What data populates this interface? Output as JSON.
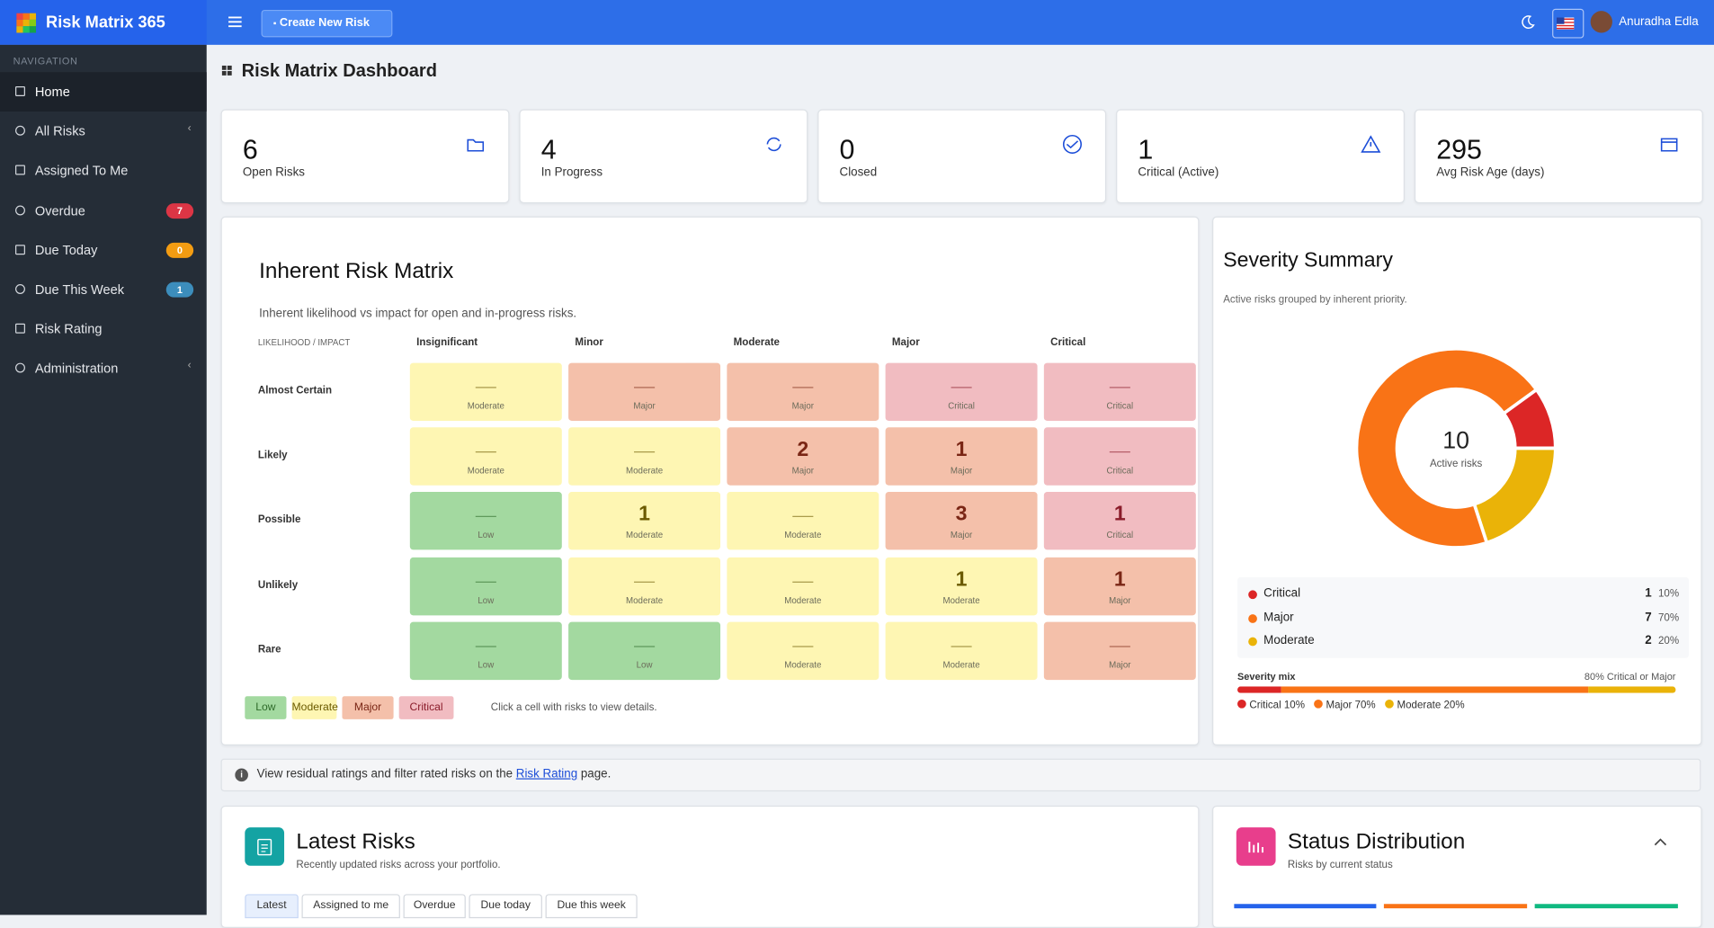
{
  "brand": "Risk Matrix 365",
  "topbar": {
    "create_button": "Create New Risk",
    "user": "Anuradha Edla"
  },
  "sidebar": {
    "heading": "NAVIGATION",
    "items": [
      {
        "label": "Home"
      },
      {
        "label": "All Risks"
      },
      {
        "label": "Assigned To Me"
      },
      {
        "label": "Overdue",
        "badge": 7
      },
      {
        "label": "Due Today",
        "badge": 0
      },
      {
        "label": "Due This Week",
        "badge": 1
      },
      {
        "label": "Risk Rating"
      },
      {
        "label": "Administration"
      }
    ]
  },
  "page_title": "Risk Matrix Dashboard",
  "stats": [
    {
      "value": 6,
      "label": "Open Risks"
    },
    {
      "value": 4,
      "label": "In Progress"
    },
    {
      "value": 0,
      "label": "Closed"
    },
    {
      "value": 1,
      "label": "Critical (Active)"
    },
    {
      "value": 295,
      "label": "Avg Risk Age (days)"
    }
  ],
  "matrix": {
    "title": "Inherent Risk Matrix",
    "subtitle": "Inherent likelihood vs impact for open and in-progress risks.",
    "corner": "LIKELIHOOD / IMPACT",
    "columns": [
      "Insignificant",
      "Minor",
      "Moderate",
      "Major",
      "Critical"
    ],
    "rows": [
      {
        "label": "Almost Certain",
        "cells": [
          {
            "rating": "Moderate"
          },
          {
            "rating": "Major"
          },
          {
            "rating": "Major"
          },
          {
            "rating": "Critical"
          },
          {
            "rating": "Critical"
          }
        ]
      },
      {
        "label": "Likely",
        "cells": [
          {
            "rating": "Moderate"
          },
          {
            "rating": "Moderate"
          },
          {
            "count": 2,
            "rating": "Major"
          },
          {
            "count": 1,
            "rating": "Major"
          },
          {
            "rating": "Critical"
          }
        ]
      },
      {
        "label": "Possible",
        "cells": [
          {
            "rating": "Low"
          },
          {
            "count": 1,
            "rating": "Moderate"
          },
          {
            "rating": "Moderate"
          },
          {
            "count": 3,
            "rating": "Major"
          },
          {
            "count": 1,
            "rating": "Critical"
          }
        ]
      },
      {
        "label": "Unlikely",
        "cells": [
          {
            "rating": "Low"
          },
          {
            "rating": "Moderate"
          },
          {
            "rating": "Moderate"
          },
          {
            "count": 1,
            "rating": "Moderate"
          },
          {
            "count": 1,
            "rating": "Major"
          }
        ]
      },
      {
        "label": "Rare",
        "cells": [
          {
            "rating": "Low"
          },
          {
            "rating": "Low"
          },
          {
            "rating": "Moderate"
          },
          {
            "rating": "Moderate"
          },
          {
            "rating": "Major"
          }
        ]
      }
    ],
    "legend": [
      {
        "label": "Low",
        "color": "#a3d9a0"
      },
      {
        "label": "Moderate",
        "color": "#fef6b3"
      },
      {
        "label": "Major",
        "color": "#f4c0aa"
      },
      {
        "label": "Critical",
        "color": "#f1bcc1"
      }
    ],
    "hint": "Click a cell with risks to view details."
  },
  "severity": {
    "title": "Severity Summary",
    "subtitle": "Active risks grouped by inherent priority.",
    "total": 10,
    "total_label": "Active risks",
    "categories": [
      "Critical",
      "Major",
      "Moderate"
    ],
    "counts": [
      1,
      7,
      2
    ],
    "percents": [
      10,
      70,
      20
    ],
    "percent_labels": [
      "10%",
      "70%",
      "20%"
    ],
    "colors": [
      "#dc2626",
      "#f97316",
      "#eab308"
    ],
    "mix_label": "Severity mix",
    "mix_summary": "80% Critical or Major"
  },
  "notice": {
    "before": "View residual ratings and filter rated risks on the ",
    "link": "Risk Rating",
    "after": " page."
  },
  "latest": {
    "title": "Latest Risks",
    "subtitle": "Recently updated risks across your portfolio.",
    "tabs": [
      "Latest",
      "Assigned to me",
      "Overdue",
      "Due today",
      "Due this week"
    ]
  },
  "status": {
    "title": "Status Distribution",
    "subtitle": "Risks by current status"
  }
}
